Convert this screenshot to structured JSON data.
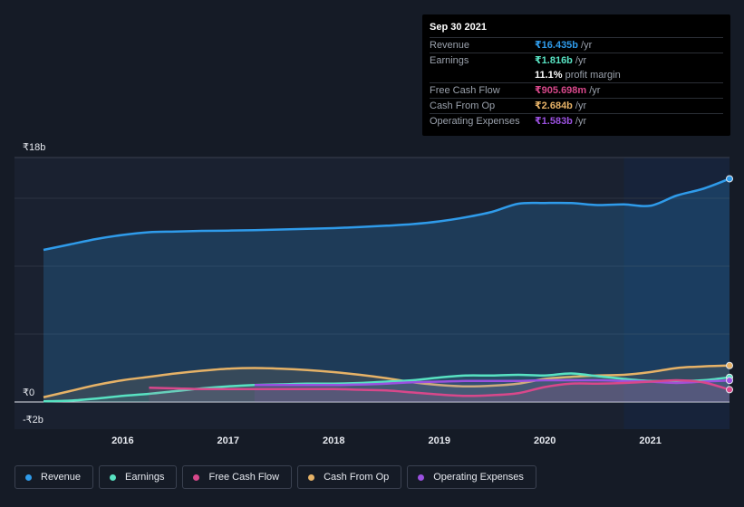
{
  "tooltip": {
    "date": "Sep 30 2021",
    "rows": [
      {
        "label": "Revenue",
        "value": "₹16.435b",
        "unit": "/yr",
        "color": "#2f9bea"
      },
      {
        "label": "Earnings",
        "value": "₹1.816b",
        "unit": "/yr",
        "color": "#58e2c2"
      },
      {
        "label": "",
        "value": "11.1%",
        "unit": "profit margin",
        "color": "#ffffff"
      },
      {
        "label": "Free Cash Flow",
        "value": "₹905.698m",
        "unit": "/yr",
        "color": "#d8488b"
      },
      {
        "label": "Cash From Op",
        "value": "₹2.684b",
        "unit": "/yr",
        "color": "#e6b267"
      },
      {
        "label": "Operating Expenses",
        "value": "₹1.583b",
        "unit": "/yr",
        "color": "#9b51e0"
      }
    ]
  },
  "legend": [
    {
      "label": "Revenue",
      "color": "#2f9bea"
    },
    {
      "label": "Earnings",
      "color": "#58e2c2"
    },
    {
      "label": "Free Cash Flow",
      "color": "#d8488b"
    },
    {
      "label": "Cash From Op",
      "color": "#e6b267"
    },
    {
      "label": "Operating Expenses",
      "color": "#9b51e0"
    }
  ],
  "chart_data": {
    "type": "line",
    "title": "",
    "xlabel": "",
    "ylabel": "",
    "xlim": [
      2015.25,
      2021.75
    ],
    "ylim": [
      -2,
      18
    ],
    "y_tick_labels": [
      {
        "v": 18,
        "label": "₹18b"
      },
      {
        "v": 0,
        "label": "₹0"
      },
      {
        "v": -2,
        "label": "-₹2b"
      }
    ],
    "x_tick_labels": [
      {
        "v": 2016,
        "label": "2016"
      },
      {
        "v": 2017,
        "label": "2017"
      },
      {
        "v": 2018,
        "label": "2018"
      },
      {
        "v": 2019,
        "label": "2019"
      },
      {
        "v": 2020,
        "label": "2020"
      },
      {
        "v": 2021,
        "label": "2021"
      }
    ],
    "gridlines": [
      15,
      10,
      5
    ],
    "highlight_from": 2020.75,
    "series": [
      {
        "name": "Revenue",
        "color": "#2f9bea",
        "fill": true,
        "points": [
          [
            2015.25,
            11.2
          ],
          [
            2015.5,
            11.6
          ],
          [
            2015.75,
            12.0
          ],
          [
            2016.0,
            12.3
          ],
          [
            2016.25,
            12.5
          ],
          [
            2016.5,
            12.55
          ],
          [
            2016.75,
            12.6
          ],
          [
            2017.0,
            12.62
          ],
          [
            2017.25,
            12.65
          ],
          [
            2017.5,
            12.7
          ],
          [
            2017.75,
            12.75
          ],
          [
            2018.0,
            12.8
          ],
          [
            2018.25,
            12.88
          ],
          [
            2018.5,
            12.98
          ],
          [
            2018.75,
            13.1
          ],
          [
            2019.0,
            13.3
          ],
          [
            2019.25,
            13.6
          ],
          [
            2019.5,
            14.0
          ],
          [
            2019.75,
            14.6
          ],
          [
            2020.0,
            14.65
          ],
          [
            2020.25,
            14.65
          ],
          [
            2020.5,
            14.5
          ],
          [
            2020.75,
            14.55
          ],
          [
            2021.0,
            14.45
          ],
          [
            2021.25,
            15.2
          ],
          [
            2021.5,
            15.7
          ],
          [
            2021.75,
            16.435
          ]
        ]
      },
      {
        "name": "Cash From Op",
        "color": "#e6b267",
        "fill": false,
        "points": [
          [
            2015.25,
            0.35
          ],
          [
            2015.5,
            0.8
          ],
          [
            2015.75,
            1.25
          ],
          [
            2016.0,
            1.6
          ],
          [
            2016.25,
            1.85
          ],
          [
            2016.5,
            2.1
          ],
          [
            2016.75,
            2.3
          ],
          [
            2017.0,
            2.45
          ],
          [
            2017.25,
            2.5
          ],
          [
            2017.5,
            2.45
          ],
          [
            2017.75,
            2.35
          ],
          [
            2018.0,
            2.2
          ],
          [
            2018.25,
            2.0
          ],
          [
            2018.5,
            1.75
          ],
          [
            2018.75,
            1.45
          ],
          [
            2019.0,
            1.25
          ],
          [
            2019.25,
            1.15
          ],
          [
            2019.5,
            1.2
          ],
          [
            2019.75,
            1.35
          ],
          [
            2020.0,
            1.7
          ],
          [
            2020.25,
            1.85
          ],
          [
            2020.5,
            1.95
          ],
          [
            2020.75,
            2.0
          ],
          [
            2021.0,
            2.2
          ],
          [
            2021.25,
            2.5
          ],
          [
            2021.5,
            2.62
          ],
          [
            2021.75,
            2.684
          ]
        ]
      },
      {
        "name": "Earnings",
        "color": "#58e2c2",
        "fill": false,
        "points": [
          [
            2015.25,
            0.05
          ],
          [
            2015.5,
            0.1
          ],
          [
            2015.75,
            0.25
          ],
          [
            2016.0,
            0.45
          ],
          [
            2016.25,
            0.6
          ],
          [
            2016.5,
            0.8
          ],
          [
            2016.75,
            1.0
          ],
          [
            2017.0,
            1.15
          ],
          [
            2017.25,
            1.25
          ],
          [
            2017.5,
            1.3
          ],
          [
            2017.75,
            1.35
          ],
          [
            2018.0,
            1.35
          ],
          [
            2018.25,
            1.4
          ],
          [
            2018.5,
            1.5
          ],
          [
            2018.75,
            1.6
          ],
          [
            2019.0,
            1.8
          ],
          [
            2019.25,
            1.95
          ],
          [
            2019.5,
            1.95
          ],
          [
            2019.75,
            2.0
          ],
          [
            2020.0,
            1.95
          ],
          [
            2020.25,
            2.1
          ],
          [
            2020.5,
            1.9
          ],
          [
            2020.75,
            1.7
          ],
          [
            2021.0,
            1.55
          ],
          [
            2021.25,
            1.55
          ],
          [
            2021.5,
            1.6
          ],
          [
            2021.75,
            1.816
          ]
        ]
      },
      {
        "name": "Operating Expenses",
        "color": "#9b51e0",
        "fill": false,
        "points": [
          [
            2017.25,
            1.25
          ],
          [
            2017.5,
            1.25
          ],
          [
            2017.75,
            1.25
          ],
          [
            2018.0,
            1.25
          ],
          [
            2018.25,
            1.28
          ],
          [
            2018.5,
            1.35
          ],
          [
            2018.75,
            1.45
          ],
          [
            2019.0,
            1.5
          ],
          [
            2019.25,
            1.55
          ],
          [
            2019.5,
            1.55
          ],
          [
            2019.75,
            1.55
          ],
          [
            2020.0,
            1.6
          ],
          [
            2020.25,
            1.6
          ],
          [
            2020.5,
            1.6
          ],
          [
            2020.75,
            1.55
          ],
          [
            2021.0,
            1.5
          ],
          [
            2021.25,
            1.4
          ],
          [
            2021.5,
            1.5
          ],
          [
            2021.75,
            1.583
          ]
        ]
      },
      {
        "name": "Free Cash Flow",
        "color": "#d8488b",
        "fill": false,
        "points": [
          [
            2016.25,
            1.05
          ],
          [
            2016.5,
            1.0
          ],
          [
            2016.75,
            0.95
          ],
          [
            2017.0,
            0.95
          ],
          [
            2017.25,
            0.95
          ],
          [
            2017.5,
            0.95
          ],
          [
            2017.75,
            0.95
          ],
          [
            2018.0,
            0.95
          ],
          [
            2018.25,
            0.9
          ],
          [
            2018.5,
            0.85
          ],
          [
            2018.75,
            0.7
          ],
          [
            2019.0,
            0.55
          ],
          [
            2019.25,
            0.45
          ],
          [
            2019.5,
            0.5
          ],
          [
            2019.75,
            0.65
          ],
          [
            2020.0,
            1.1
          ],
          [
            2020.25,
            1.35
          ],
          [
            2020.5,
            1.35
          ],
          [
            2020.75,
            1.4
          ],
          [
            2021.0,
            1.5
          ],
          [
            2021.25,
            1.6
          ],
          [
            2021.5,
            1.45
          ],
          [
            2021.75,
            0.906
          ]
        ]
      }
    ]
  }
}
